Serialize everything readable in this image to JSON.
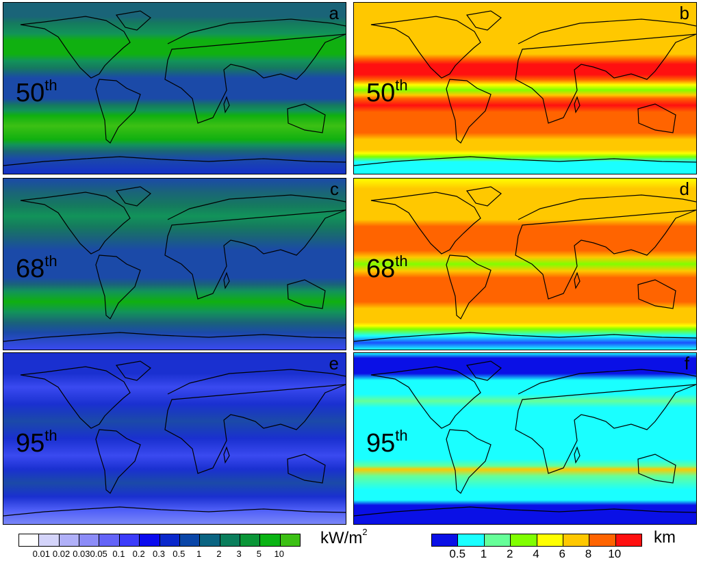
{
  "panels": [
    {
      "letter": "a",
      "percentile": "50",
      "suffix": "th"
    },
    {
      "letter": "b",
      "percentile": "50",
      "suffix": "th"
    },
    {
      "letter": "c",
      "percentile": "68",
      "suffix": "th"
    },
    {
      "letter": "d",
      "percentile": "68",
      "suffix": "th"
    },
    {
      "letter": "e",
      "percentile": "95",
      "suffix": "th"
    },
    {
      "letter": "f",
      "percentile": "95",
      "suffix": "th"
    }
  ],
  "colorbar_power": {
    "unit": "kW/m",
    "unit_exp": "2",
    "colors": [
      "#ffffff",
      "#d4d4fa",
      "#b0b0f8",
      "#8c8cf8",
      "#6464f8",
      "#3c3cfa",
      "#0a0aee",
      "#0a28cc",
      "#0a46a8",
      "#0a6482",
      "#0a7e5c",
      "#0a9638",
      "#0ab414",
      "#3cc014"
    ],
    "ticks": [
      "0.01",
      "0.02",
      "0.03",
      "0.05",
      "0.1",
      "0.2",
      "0.3",
      "0.5",
      "1",
      "2",
      "3",
      "5",
      "10"
    ]
  },
  "colorbar_height": {
    "unit": "km",
    "colors": [
      "#0a10e6",
      "#1affff",
      "#66ff99",
      "#80ff00",
      "#ffff00",
      "#ffc800",
      "#ff6400",
      "#ff1010"
    ],
    "ticks": [
      "0.5",
      "1",
      "2",
      "4",
      "6",
      "8",
      "10"
    ]
  }
}
